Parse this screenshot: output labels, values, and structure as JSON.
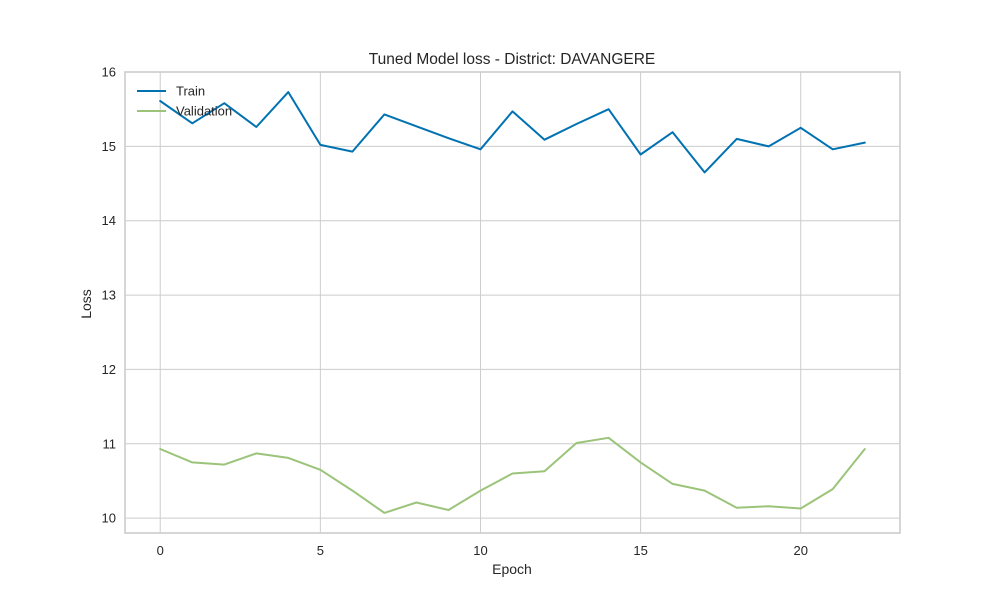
{
  "chart_data": {
    "type": "line",
    "title": "Tuned Model loss - District: DAVANGERE",
    "xlabel": "Epoch",
    "ylabel": "Loss",
    "xlim": [
      -1.1,
      23.1
    ],
    "ylim": [
      9.8,
      16.0
    ],
    "xticks": [
      0,
      5,
      10,
      15,
      20
    ],
    "yticks": [
      10,
      11,
      12,
      13,
      14,
      15,
      16
    ],
    "grid": true,
    "legend_position": "upper-left",
    "x": [
      0,
      1,
      2,
      3,
      4,
      5,
      6,
      7,
      8,
      9,
      10,
      11,
      12,
      13,
      14,
      15,
      16,
      17,
      18,
      19,
      20,
      21,
      22
    ],
    "series": [
      {
        "name": "Train",
        "color": "#0072b2",
        "values": [
          15.61,
          15.31,
          15.58,
          15.26,
          15.73,
          15.02,
          14.93,
          15.43,
          15.27,
          15.11,
          14.96,
          15.47,
          15.09,
          15.3,
          15.5,
          14.89,
          15.19,
          14.65,
          15.1,
          15.0,
          15.25,
          14.96,
          15.05
        ]
      },
      {
        "name": "Validation",
        "color": "#9bc47a",
        "values": [
          10.93,
          10.75,
          10.72,
          10.87,
          10.81,
          10.65,
          10.37,
          10.07,
          10.21,
          10.11,
          10.37,
          10.6,
          10.63,
          11.01,
          11.08,
          10.75,
          10.46,
          10.37,
          10.14,
          10.16,
          10.13,
          10.39,
          10.93
        ]
      }
    ]
  }
}
